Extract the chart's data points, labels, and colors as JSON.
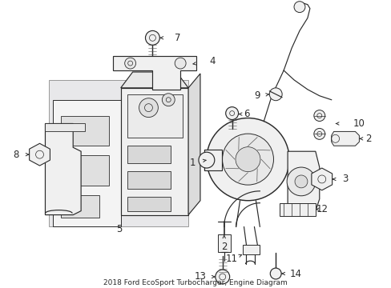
{
  "title": "2018 Ford EcoSport Turbocharger, Engine Diagram",
  "bg": "#ffffff",
  "lc": "#2a2a2a",
  "lc2": "#555555",
  "shade": "#e8e8ea",
  "fig_w": 4.89,
  "fig_h": 3.6,
  "dpi": 100,
  "label_fs": 8.5,
  "arrow_lw": 0.7,
  "part_lw": 0.85
}
